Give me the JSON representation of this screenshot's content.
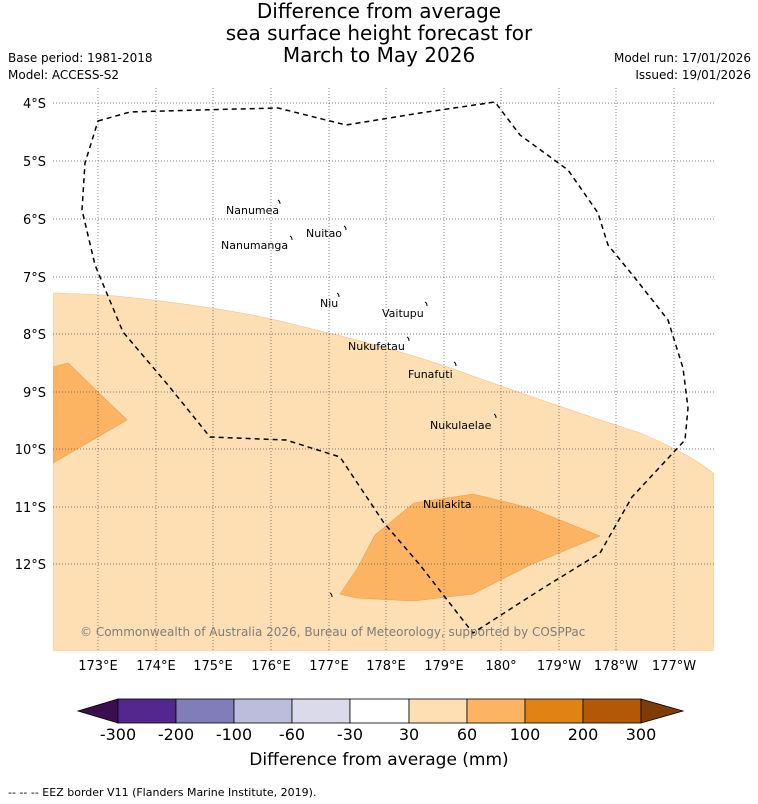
{
  "title": {
    "line1": "Difference from average",
    "line2": "sea surface height forecast for",
    "line3": "March to May 2026"
  },
  "meta_left": {
    "base_period": "Base period: 1981-2018",
    "model": "Model: ACCESS-S2"
  },
  "meta_right": {
    "model_run": "Model run: 17/01/2026",
    "issued": "Issued: 19/01/2026"
  },
  "map": {
    "lat_labels": [
      "4°S",
      "5°S",
      "6°S",
      "7°S",
      "8°S",
      "9°S",
      "10°S",
      "11°S",
      "12°S"
    ],
    "lon_labels": [
      "173°E",
      "174°E",
      "175°E",
      "176°E",
      "177°E",
      "178°E",
      "179°E",
      "180°",
      "179°W",
      "178°W",
      "177°W"
    ],
    "islands": [
      {
        "name": "Nanumea"
      },
      {
        "name": "Nuitao"
      },
      {
        "name": "Nanumanga"
      },
      {
        "name": "Niu"
      },
      {
        "name": "Vaitupu"
      },
      {
        "name": "Nukufetau"
      },
      {
        "name": "Funafuti"
      },
      {
        "name": "Nukulaelae"
      },
      {
        "name": "Nuilakita"
      }
    ],
    "copyright": "© Commonwealth of Australia 2026, Bureau of Meteorology, supported by COSPPac"
  },
  "colorbar": {
    "title": "Difference from average (mm)",
    "labels": [
      "-300",
      "-200",
      "-100",
      "-60",
      "-30",
      "30",
      "60",
      "100",
      "200",
      "300"
    ],
    "colors": [
      "#3b0f4f",
      "#54278f",
      "#807dba",
      "#bcbddc",
      "#dadaeb",
      "#ffffff",
      "#fddfb3",
      "#fdb462",
      "#e08214",
      "#b35806",
      "#7f3b08"
    ]
  },
  "footnote": "--  --  -- EEZ border V11 (Flanders Marine Institute, 2019)."
}
